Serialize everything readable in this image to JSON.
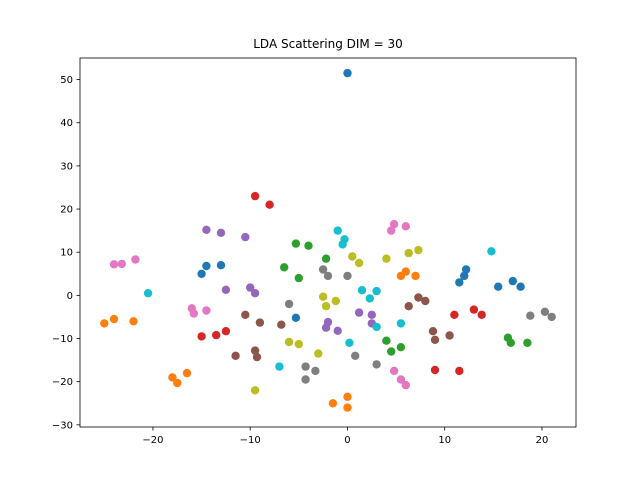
{
  "chart_data": {
    "type": "scatter",
    "title": "LDA Scattering DIM = 30",
    "xlabel": "",
    "ylabel": "",
    "xlim": [
      -27.5,
      23.5
    ],
    "ylim": [
      -30.5,
      55
    ],
    "xticks": [
      -20,
      -10,
      0,
      10,
      20
    ],
    "yticks": [
      -30,
      -20,
      -10,
      0,
      10,
      20,
      30,
      40,
      50
    ],
    "grid": false,
    "legend": "none",
    "series": [
      {
        "color": "#1f77b4",
        "x": [
          -15,
          -14.5,
          -13,
          11.5,
          12,
          12.2,
          15.5,
          17,
          17.8,
          -5.3,
          0
        ],
        "y": [
          5,
          6.8,
          7,
          3,
          4.5,
          6,
          2,
          3.3,
          2,
          -5.2,
          51.5
        ]
      },
      {
        "color": "#ff7f0e",
        "x": [
          -25,
          -24,
          -22,
          -18,
          -17.5,
          -16.5,
          -1.5,
          0,
          0,
          5.5,
          6,
          7
        ],
        "y": [
          -6.5,
          -5.5,
          -6,
          -19,
          -20.3,
          -18,
          -25,
          -26,
          -23.5,
          4.5,
          5.5,
          4.5
        ]
      },
      {
        "color": "#2ca02c",
        "x": [
          -5.3,
          -4,
          -5,
          -6.5,
          -2.2,
          4,
          4.5,
          5.5,
          16.5,
          16.8,
          18.5
        ],
        "y": [
          12,
          11.5,
          4,
          6.5,
          8.5,
          -10.5,
          -13,
          -12,
          -9.8,
          -11,
          -11
        ]
      },
      {
        "color": "#d62728",
        "x": [
          -9.5,
          -8,
          -15,
          -13.5,
          -12.5,
          9,
          11,
          11.5,
          13,
          13.8
        ],
        "y": [
          23,
          21,
          -9.5,
          -9.2,
          -8.3,
          -17.3,
          -4.5,
          -17.5,
          -3.3,
          -4.5
        ]
      },
      {
        "color": "#9467bd",
        "x": [
          -14.5,
          -13,
          -10.5,
          -12.5,
          -10,
          -9.5,
          -2,
          -2.2,
          -1,
          1.2,
          2.5,
          2.5
        ],
        "y": [
          15.2,
          14.5,
          13.5,
          1.3,
          1.8,
          0.5,
          -6.2,
          -7.5,
          -8.2,
          -4,
          -4.5,
          -6.5
        ]
      },
      {
        "color": "#8c564b",
        "x": [
          -10.5,
          -9,
          -11.5,
          -9.5,
          -9.3,
          -6.8,
          6.3,
          7.3,
          8,
          8.8,
          9,
          10.5
        ],
        "y": [
          -4.5,
          -6.3,
          -14,
          -12.8,
          -14.3,
          -6.8,
          -2.5,
          -0.5,
          -1.3,
          -8.3,
          -10.3,
          -9.3
        ]
      },
      {
        "color": "#e377c2",
        "x": [
          -24,
          -23.2,
          -21.8,
          -16,
          -15.8,
          -14.5,
          4.5,
          4.8,
          6,
          4.8,
          5.5,
          6
        ],
        "y": [
          7.2,
          7.3,
          8.3,
          -3,
          -4.2,
          -3.5,
          15,
          16.5,
          16,
          -17.5,
          -19.5,
          -20.8
        ]
      },
      {
        "color": "#7f7f7f",
        "x": [
          -2.5,
          -2,
          0,
          -6,
          -4.3,
          -3.3,
          -4.3,
          0.8,
          3,
          18.8,
          20.3,
          21
        ],
        "y": [
          6,
          4.5,
          4.5,
          -2,
          -16.5,
          -17.5,
          -19.5,
          -14,
          -16,
          -4.7,
          -3.8,
          -5
        ]
      },
      {
        "color": "#bcbd22",
        "x": [
          -9.5,
          -6,
          -5,
          -3,
          -2.5,
          -2.2,
          -1.2,
          0.5,
          1.2,
          4,
          6.3,
          7.3
        ],
        "y": [
          -22,
          -10.8,
          -11.3,
          -13.5,
          -0.3,
          -2.5,
          -1.3,
          9,
          7.5,
          8.5,
          9.8,
          10.5
        ]
      },
      {
        "color": "#17becf",
        "x": [
          -20.5,
          -7,
          -1,
          -0.5,
          -0.3,
          0.2,
          1.5,
          2.3,
          3,
          3,
          5.5,
          14.8
        ],
        "y": [
          0.5,
          -16.5,
          15,
          11.8,
          13,
          -11,
          1.2,
          -0.7,
          -7.3,
          1,
          -6.5,
          10.2
        ]
      }
    ]
  }
}
